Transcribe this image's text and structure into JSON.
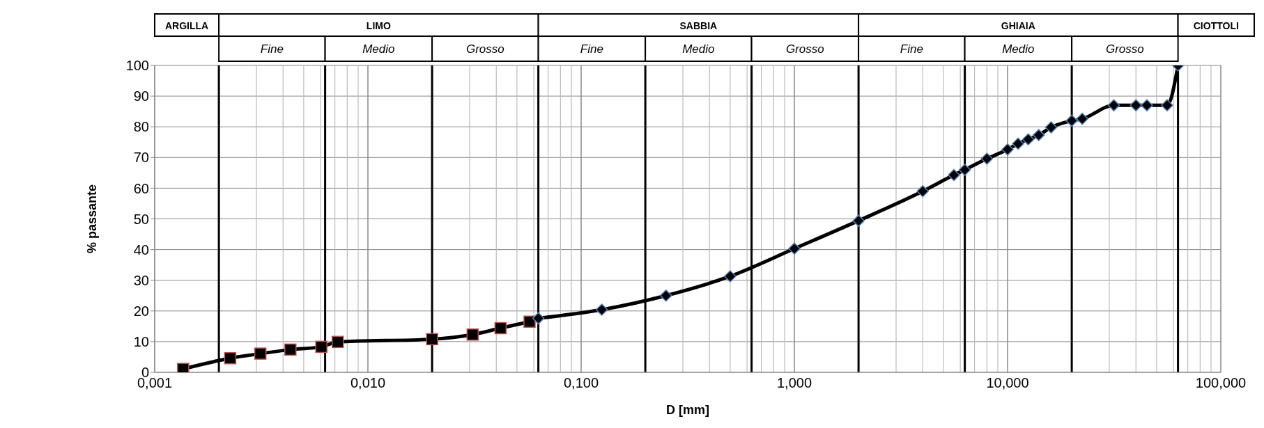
{
  "chart_data": {
    "type": "line",
    "xlabel": "D [mm]",
    "ylabel": "% passante",
    "log": "x",
    "grid": true,
    "legend": false,
    "line_style": "solid",
    "xlim": [
      0.001,
      100
    ],
    "xticks": [
      {
        "value": 0.001,
        "label": "0,001"
      },
      {
        "value": 0.01,
        "label": "0,010"
      },
      {
        "value": 0.1,
        "label": "0,100"
      },
      {
        "value": 1,
        "label": "1,000"
      },
      {
        "value": 10,
        "label": "10,000"
      },
      {
        "value": 100,
        "label": "100,000"
      }
    ],
    "ylim": [
      0,
      100
    ],
    "yticks": [
      0,
      10,
      20,
      30,
      40,
      50,
      60,
      70,
      80,
      90,
      100
    ],
    "series": [
      {
        "color": "#000000",
        "marker": "square",
        "x": [
          0.00136,
          0.00226,
          0.00313,
          0.00433,
          0.00605,
          0.00722,
          0.02,
          0.031,
          0.0419,
          0.0573
        ],
        "values": [
          1.1,
          4.6,
          6.1,
          7.4,
          8.3,
          9.9,
          10.8,
          12.3,
          14.4,
          16.5
        ]
      },
      {
        "color": "#000000",
        "marker": "diamond",
        "x": [
          0.063,
          0.125,
          0.25,
          0.5,
          1,
          2,
          4,
          5.6,
          6.3,
          8,
          10,
          11.2,
          12.5,
          14,
          16,
          20,
          22.4,
          31.5,
          40,
          45,
          56,
          63
        ],
        "values": [
          17.6,
          20.4,
          25,
          31.3,
          40.3,
          49.4,
          59,
          64.3,
          66,
          69.6,
          72.6,
          74.5,
          75.9,
          77.3,
          79.8,
          82,
          82.6,
          87,
          87,
          87,
          87,
          100
        ]
      }
    ],
    "ref_lines": [
      {
        "axis": "x",
        "value": 0.002
      },
      {
        "axis": "x",
        "value": 0.0063
      },
      {
        "axis": "x",
        "value": 0.02
      },
      {
        "axis": "x",
        "value": 0.063
      },
      {
        "axis": "x",
        "value": 0.2
      },
      {
        "axis": "x",
        "value": 0.63
      },
      {
        "axis": "x",
        "value": 2
      },
      {
        "axis": "x",
        "value": 6.3
      },
      {
        "axis": "x",
        "value": 20
      },
      {
        "axis": "x",
        "value": 63
      }
    ],
    "annotations": [
      "ARGILLA",
      "LIMO",
      "SABBIA",
      "GHIAIA",
      "CIOTTOLI",
      "Fine",
      "Medio",
      "Grosso",
      "Fine",
      "Medio",
      "Grosso",
      "Fine",
      "Medio",
      "Grosso"
    ]
  }
}
